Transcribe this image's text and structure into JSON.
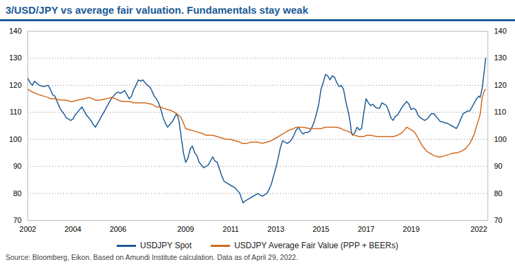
{
  "chart_data": {
    "type": "line",
    "title": "3/USD/JPY vs average fair valuation. Fundamentals stay weak",
    "source": "Source: Bloomberg, Eikon. Based on Amundi Institute calculation. Data as of April 29, 2022.",
    "xlim": [
      2002,
      2022.4
    ],
    "xticks": [
      2002,
      2004,
      2006,
      2009,
      2011,
      2013,
      2015,
      2017,
      2019,
      2022
    ],
    "ylim": [
      70,
      140
    ],
    "yticks": [
      70,
      80,
      90,
      100,
      110,
      120,
      130,
      140
    ],
    "grid": true,
    "legend": "bottom",
    "series": [
      {
        "name": "USDJPY Spot",
        "color": "#1a5a96",
        "x": [
          2002.0,
          2002.1,
          2002.2,
          2002.3,
          2002.5,
          2002.7,
          2002.9,
          2003.0,
          2003.1,
          2003.2,
          2003.3,
          2003.4,
          2003.5,
          2003.6,
          2003.7,
          2003.8,
          2003.9,
          2004.0,
          2004.1,
          2004.2,
          2004.3,
          2004.4,
          2004.5,
          2004.6,
          2004.7,
          2004.8,
          2004.9,
          2005.0,
          2005.1,
          2005.2,
          2005.3,
          2005.4,
          2005.5,
          2005.6,
          2005.7,
          2005.8,
          2005.9,
          2006.0,
          2006.1,
          2006.2,
          2006.3,
          2006.4,
          2006.5,
          2006.6,
          2006.7,
          2006.8,
          2006.9,
          2007.0,
          2007.1,
          2007.2,
          2007.3,
          2007.4,
          2007.5,
          2007.6,
          2007.7,
          2007.8,
          2007.9,
          2008.0,
          2008.1,
          2008.2,
          2008.3,
          2008.4,
          2008.5,
          2008.6,
          2008.7,
          2008.8,
          2008.9,
          2009.0,
          2009.1,
          2009.2,
          2009.3,
          2009.4,
          2009.5,
          2009.6,
          2009.7,
          2009.8,
          2009.9,
          2010.0,
          2010.1,
          2010.2,
          2010.3,
          2010.4,
          2010.5,
          2010.6,
          2010.7,
          2010.8,
          2010.9,
          2011.0,
          2011.1,
          2011.2,
          2011.3,
          2011.4,
          2011.5,
          2011.55,
          2011.6,
          2011.7,
          2011.8,
          2011.9,
          2012.0,
          2012.1,
          2012.2,
          2012.3,
          2012.4,
          2012.5,
          2012.6,
          2012.7,
          2012.8,
          2012.9,
          2013.0,
          2013.1,
          2013.2,
          2013.3,
          2013.4,
          2013.5,
          2013.6,
          2013.7,
          2013.8,
          2013.9,
          2014.0,
          2014.1,
          2014.2,
          2014.3,
          2014.4,
          2014.5,
          2014.6,
          2014.7,
          2014.8,
          2014.9,
          2015.0,
          2015.1,
          2015.2,
          2015.3,
          2015.4,
          2015.5,
          2015.6,
          2015.7,
          2015.8,
          2015.9,
          2016.0,
          2016.1,
          2016.2,
          2016.25,
          2016.3,
          2016.35,
          2016.4,
          2016.5,
          2016.6,
          2016.7,
          2016.8,
          2016.9,
          2017.0,
          2017.1,
          2017.2,
          2017.3,
          2017.4,
          2017.5,
          2017.6,
          2017.7,
          2017.8,
          2017.9,
          2018.0,
          2018.1,
          2018.2,
          2018.3,
          2018.4,
          2018.5,
          2018.6,
          2018.7,
          2018.8,
          2018.9,
          2019.0,
          2019.1,
          2019.2,
          2019.3,
          2019.4,
          2019.5,
          2019.6,
          2019.7,
          2019.8,
          2019.9,
          2020.0,
          2020.1,
          2020.2,
          2020.3,
          2020.4,
          2020.5,
          2020.6,
          2020.7,
          2020.8,
          2020.9,
          2021.0,
          2021.1,
          2021.2,
          2021.3,
          2021.4,
          2021.5,
          2021.6,
          2021.7,
          2021.8,
          2021.9,
          2022.0,
          2022.05,
          2022.1,
          2022.15,
          2022.2,
          2022.25,
          2022.3
        ],
        "values": [
          122.5,
          121.0,
          120.0,
          121.5,
          120.0,
          119.5,
          120.0,
          118.5,
          116.5,
          116.0,
          114.0,
          112.0,
          110.5,
          109.5,
          108.0,
          107.5,
          107.0,
          107.5,
          109.0,
          110.0,
          111.0,
          112.0,
          110.5,
          109.0,
          108.0,
          107.0,
          105.5,
          104.5,
          106.0,
          107.5,
          109.0,
          110.5,
          112.0,
          113.5,
          115.0,
          116.0,
          117.0,
          117.5,
          117.0,
          117.5,
          118.0,
          116.5,
          115.0,
          116.0,
          118.5,
          120.0,
          122.0,
          121.5,
          122.0,
          121.0,
          120.0,
          119.5,
          118.0,
          116.0,
          115.0,
          113.5,
          111.0,
          108.0,
          106.0,
          104.5,
          105.5,
          106.5,
          108.0,
          109.5,
          107.0,
          101.0,
          95.0,
          91.5,
          93.0,
          96.5,
          97.5,
          95.0,
          94.0,
          91.5,
          90.5,
          89.5,
          90.0,
          90.5,
          92.0,
          93.5,
          92.0,
          91.5,
          89.0,
          86.5,
          84.5,
          84.0,
          83.5,
          83.0,
          82.5,
          82.0,
          81.0,
          80.0,
          77.5,
          76.5,
          77.0,
          77.5,
          78.0,
          78.5,
          79.0,
          79.5,
          80.0,
          79.5,
          79.0,
          79.5,
          80.0,
          81.5,
          83.5,
          86.5,
          89.5,
          93.0,
          97.0,
          99.5,
          99.0,
          98.5,
          99.0,
          100.0,
          101.5,
          103.5,
          104.5,
          103.0,
          102.0,
          102.5,
          102.5,
          103.0,
          104.5,
          106.5,
          109.5,
          113.0,
          118.5,
          121.0,
          124.0,
          123.5,
          122.0,
          123.5,
          123.0,
          121.0,
          119.5,
          120.0,
          118.5,
          114.0,
          110.5,
          108.5,
          106.0,
          102.5,
          101.5,
          102.5,
          104.5,
          103.5,
          104.0,
          110.0,
          115.0,
          113.5,
          112.5,
          113.0,
          112.0,
          111.5,
          111.5,
          113.5,
          113.0,
          112.5,
          110.5,
          108.0,
          107.0,
          108.5,
          109.0,
          110.5,
          112.0,
          113.0,
          114.0,
          113.0,
          111.0,
          111.5,
          111.0,
          109.0,
          108.0,
          107.5,
          107.0,
          107.5,
          108.5,
          109.5,
          109.5,
          108.5,
          107.5,
          106.5,
          106.5,
          106.0,
          106.0,
          105.5,
          105.0,
          104.5,
          104.0,
          105.5,
          107.5,
          109.5,
          110.0,
          110.5,
          110.5,
          112.0,
          113.5,
          115.0,
          116.0,
          115.5,
          117.0,
          119.0,
          122.5,
          126.0,
          130.0
        ]
      },
      {
        "name": "USDJPY Average Fair Value (PPP + BEERs)",
        "color": "#d2691e",
        "x": [
          2002.0,
          2002.2,
          2002.5,
          2002.7,
          2002.9,
          2003.0,
          2003.2,
          2003.5,
          2003.7,
          2003.9,
          2004.0,
          2004.2,
          2004.5,
          2004.7,
          2004.9,
          2005.0,
          2005.2,
          2005.5,
          2005.7,
          2005.9,
          2006.0,
          2006.2,
          2006.5,
          2006.7,
          2006.9,
          2007.0,
          2007.2,
          2007.5,
          2007.7,
          2007.9,
          2008.0,
          2008.2,
          2008.4,
          2008.6,
          2008.8,
          2008.9,
          2009.0,
          2009.2,
          2009.4,
          2009.6,
          2009.8,
          2009.9,
          2010.0,
          2010.2,
          2010.4,
          2010.6,
          2010.8,
          2010.9,
          2011.0,
          2011.2,
          2011.4,
          2011.5,
          2011.7,
          2011.9,
          2012.0,
          2012.2,
          2012.4,
          2012.6,
          2012.8,
          2012.9,
          2013.0,
          2013.2,
          2013.4,
          2013.6,
          2013.8,
          2013.9,
          2014.0,
          2014.2,
          2014.5,
          2014.7,
          2014.9,
          2015.0,
          2015.2,
          2015.5,
          2015.7,
          2015.9,
          2016.0,
          2016.2,
          2016.4,
          2016.5,
          2016.7,
          2016.9,
          2017.0,
          2017.2,
          2017.5,
          2017.7,
          2017.9,
          2018.0,
          2018.2,
          2018.4,
          2018.6,
          2018.8,
          2018.9,
          2019.0,
          2019.1,
          2019.2,
          2019.3,
          2019.4,
          2019.5,
          2019.6,
          2019.7,
          2019.8,
          2019.9,
          2020.0,
          2020.2,
          2020.3,
          2020.5,
          2020.7,
          2020.9,
          2021.0,
          2021.2,
          2021.4,
          2021.6,
          2021.8,
          2021.9,
          2022.0,
          2022.05,
          2022.1,
          2022.15,
          2022.2,
          2022.25,
          2022.3
        ],
        "values": [
          118.5,
          117.5,
          116.5,
          116.0,
          115.5,
          115.0,
          115.0,
          114.5,
          114.5,
          114.0,
          114.0,
          114.5,
          115.0,
          115.5,
          115.0,
          114.5,
          114.5,
          115.0,
          115.5,
          115.0,
          114.5,
          114.0,
          114.0,
          113.5,
          113.5,
          113.5,
          113.5,
          113.0,
          112.0,
          112.0,
          111.5,
          111.0,
          110.5,
          109.5,
          108.0,
          106.0,
          104.0,
          103.5,
          103.0,
          102.5,
          102.0,
          101.5,
          101.5,
          101.5,
          101.0,
          100.5,
          100.0,
          100.0,
          100.0,
          99.5,
          99.0,
          98.5,
          98.5,
          99.0,
          99.0,
          99.0,
          98.5,
          99.0,
          99.5,
          100.0,
          100.5,
          101.5,
          102.5,
          103.5,
          104.0,
          104.5,
          104.5,
          104.5,
          104.0,
          104.0,
          104.0,
          104.0,
          104.5,
          104.5,
          104.5,
          104.0,
          103.5,
          103.0,
          102.0,
          101.5,
          101.0,
          101.0,
          101.5,
          101.5,
          101.0,
          101.0,
          101.0,
          101.0,
          101.0,
          101.5,
          102.5,
          104.5,
          104.0,
          103.5,
          103.0,
          102.0,
          100.5,
          99.0,
          97.5,
          96.5,
          95.5,
          95.0,
          94.5,
          94.0,
          93.5,
          93.5,
          94.0,
          94.5,
          95.0,
          95.0,
          95.5,
          96.5,
          98.5,
          102.0,
          105.0,
          107.5,
          109.0,
          112.0,
          115.5,
          117.0,
          118.0,
          118.5
        ]
      }
    ]
  }
}
